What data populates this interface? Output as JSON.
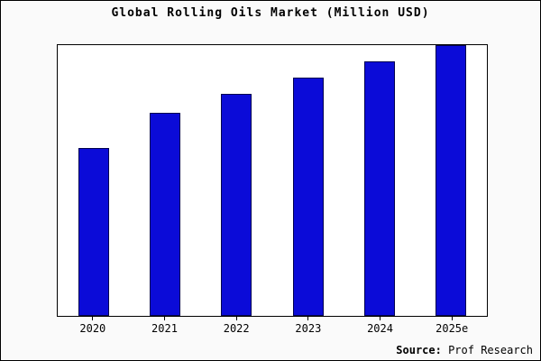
{
  "page": {
    "title": "Global Rolling Oils Market (Million USD)"
  },
  "source": {
    "label": "Source:",
    "value": " Prof Research"
  },
  "chart_data": {
    "type": "bar",
    "title": "Global Rolling Oils Market (Million USD)",
    "categories": [
      "2020",
      "2021",
      "2022",
      "2023",
      "2024",
      "2025e"
    ],
    "values": [
      62,
      75,
      82,
      88,
      94,
      100
    ],
    "xlabel": "",
    "ylabel": "",
    "ylim": [
      0,
      100
    ],
    "grid": false,
    "legend": false,
    "bar_color": "#0b0bd8",
    "bar_edge_color": "#000050",
    "axis_color": "#000000",
    "plot_background": "#ffffff"
  }
}
